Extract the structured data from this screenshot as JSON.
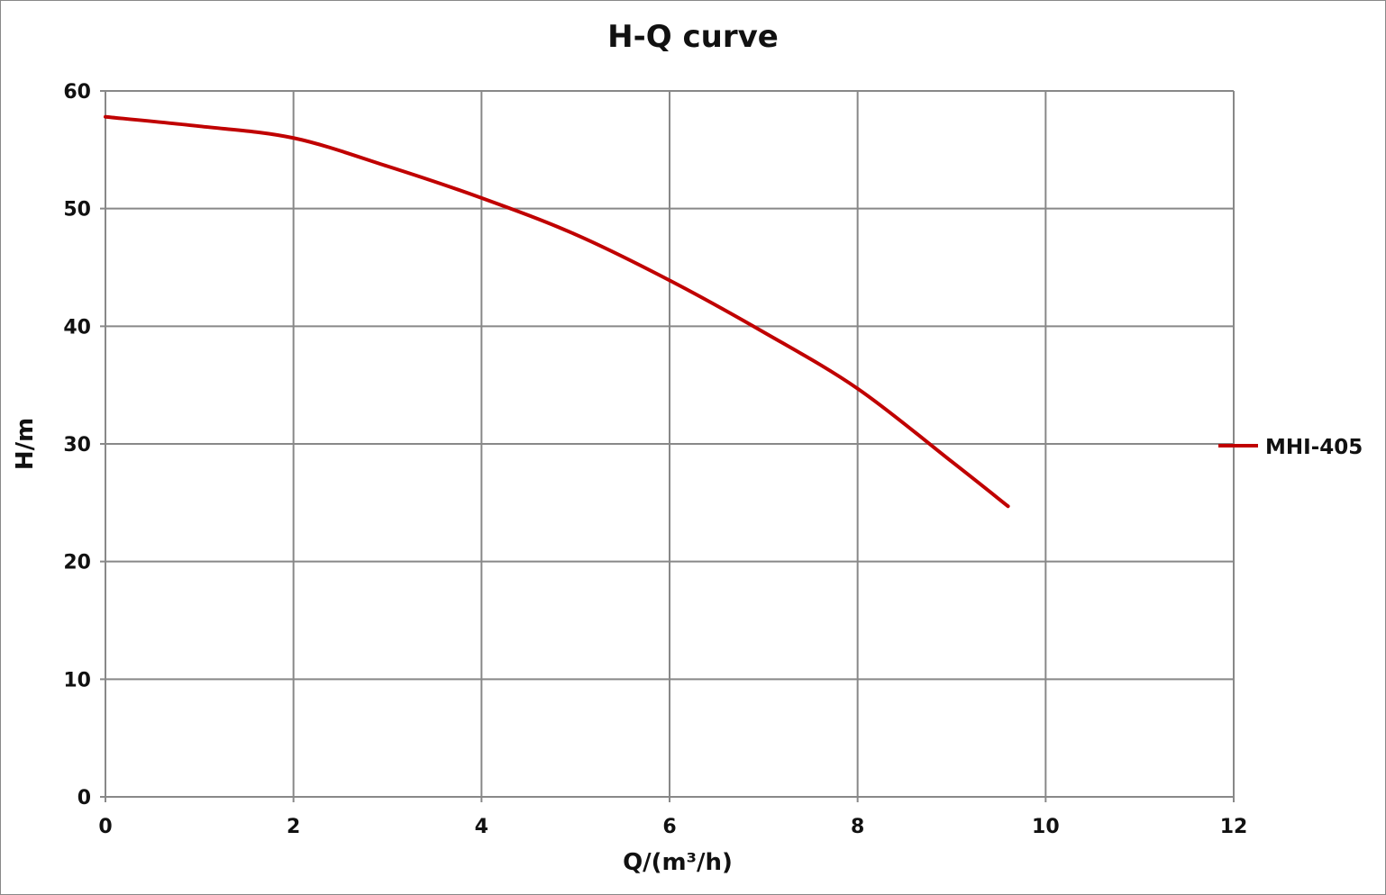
{
  "chart_data": {
    "type": "line",
    "title": "H-Q  curve",
    "xlabel": "Q/(m³/h)",
    "ylabel": "H/m",
    "xlim": [
      0,
      12
    ],
    "ylim": [
      0,
      60
    ],
    "xticks": [
      0,
      2,
      4,
      6,
      8,
      10,
      12
    ],
    "yticks": [
      0,
      10,
      20,
      30,
      40,
      50,
      60
    ],
    "grid": true,
    "legend_position": "right",
    "series": [
      {
        "name": "MHI-405",
        "color": "#c00000",
        "x": [
          0,
          1,
          2,
          3,
          4,
          5,
          6,
          7,
          8,
          9,
          9.6
        ],
        "y": [
          57.8,
          57.0,
          56.0,
          53.6,
          50.9,
          47.8,
          43.9,
          39.5,
          34.7,
          28.5,
          24.7
        ]
      }
    ]
  }
}
